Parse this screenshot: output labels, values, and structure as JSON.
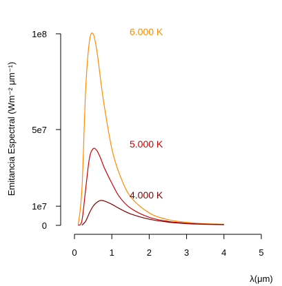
{
  "chart_data": {
    "type": "line",
    "xlabel": "λ(μm)",
    "ylabel": "Emitancia Espectral (Wm⁻² μm⁻¹)",
    "xlim": [
      0,
      5
    ],
    "ylim": [
      0,
      100000000
    ],
    "x_ticks": [
      0,
      1,
      2,
      3,
      4,
      5
    ],
    "x_tick_labels": [
      "0",
      "1",
      "2",
      "3",
      "4",
      "5"
    ],
    "y_ticks": [
      0,
      10000000,
      50000000,
      100000000
    ],
    "y_tick_labels": [
      "0",
      "1e7",
      "5e7",
      "1e8"
    ],
    "grid": false,
    "legend": "direct labels near curves",
    "series": [
      {
        "name": "6.000 K",
        "color": "#ff8c00",
        "x": [
          0.1,
          0.2,
          0.3,
          0.4,
          0.5,
          0.6,
          0.7,
          0.8,
          1.0,
          1.2,
          1.5,
          2.0,
          2.5,
          3.0,
          3.5,
          4.0
        ],
        "values": [
          200000,
          19000000,
          71000000,
          96000000,
          100000000,
          91000000,
          76000000,
          62000000,
          40000000,
          27000000,
          15000000,
          6500000,
          3000000,
          1600000,
          900000,
          600000
        ]
      },
      {
        "name": "5.000 K",
        "color": "#cc0000",
        "x": [
          0.1,
          0.2,
          0.3,
          0.4,
          0.5,
          0.6,
          0.7,
          0.8,
          1.0,
          1.2,
          1.5,
          2.0,
          2.5,
          3.0,
          3.5,
          4.0
        ],
        "values": [
          0,
          2500000,
          19000000,
          35000000,
          40000000,
          39000000,
          35000000,
          30000000,
          22000000,
          15000000,
          9000000,
          4200000,
          2100000,
          1100000,
          600000,
          400000
        ]
      },
      {
        "name": "4.000 K",
        "color": "#800000",
        "x": [
          0.2,
          0.3,
          0.4,
          0.5,
          0.6,
          0.7,
          0.8,
          1.0,
          1.2,
          1.5,
          2.0,
          2.5,
          3.0,
          3.5,
          4.0
        ],
        "values": [
          100000,
          2200000,
          6500000,
          10000000,
          12000000,
          13000000,
          12700000,
          11000000,
          8800000,
          6000000,
          3200000,
          1700000,
          900000,
          550000,
          350000
        ]
      }
    ]
  }
}
